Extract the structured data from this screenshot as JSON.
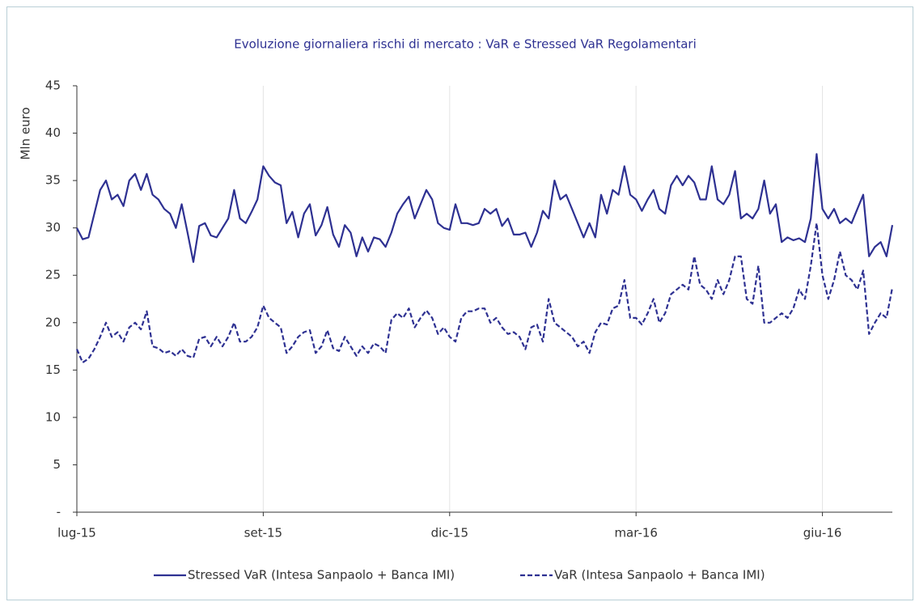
{
  "chart_data": {
    "type": "line",
    "title": "Evoluzione giornaliera rischi di mercato : VaR e Stressed VaR Regolamentari",
    "y_label": "Mln euro",
    "categories": [
      "lug-15",
      null,
      null,
      null,
      null,
      null,
      null,
      null,
      null,
      null,
      null,
      null,
      null,
      null,
      null,
      null,
      null,
      null,
      null,
      null,
      null,
      null,
      null,
      null,
      null,
      null,
      null,
      null,
      null,
      null,
      null,
      null,
      "set-15",
      null,
      null,
      null,
      null,
      null,
      null,
      null,
      null,
      null,
      null,
      null,
      null,
      null,
      null,
      null,
      null,
      null,
      null,
      null,
      null,
      null,
      null,
      null,
      null,
      null,
      null,
      null,
      null,
      null,
      null,
      null,
      "dic-15",
      null,
      null,
      null,
      null,
      null,
      null,
      null,
      null,
      null,
      null,
      null,
      null,
      null,
      null,
      null,
      null,
      null,
      null,
      null,
      null,
      null,
      null,
      null,
      null,
      null,
      null,
      null,
      null,
      null,
      null,
      null,
      "mar-16",
      null,
      null,
      null,
      null,
      null,
      null,
      null,
      null,
      null,
      null,
      null,
      null,
      null,
      null,
      null,
      null,
      null,
      null,
      null,
      null,
      null,
      null,
      null,
      null,
      null,
      null,
      null,
      null,
      null,
      null,
      null,
      "giu-16",
      null,
      null,
      null,
      null,
      null,
      null,
      null,
      null,
      null,
      null,
      null,
      null
    ],
    "series": [
      {
        "name": "Stressed VaR (Intesa Sanpaolo + Banca IMI)",
        "color": "#2e3192",
        "line_style": "solid",
        "values": [
          30,
          28.8,
          29,
          31.5,
          34,
          35,
          33,
          33.5,
          32.3,
          35,
          35.7,
          34,
          35.7,
          33.5,
          33,
          32,
          31.5,
          30,
          32.5,
          29.5,
          26.4,
          30.2,
          30.5,
          29.2,
          29,
          30,
          31,
          34,
          31,
          30.5,
          31.7,
          33,
          36.5,
          35.5,
          34.8,
          34.5,
          30.5,
          31.7,
          29,
          31.5,
          32.5,
          29.2,
          30.3,
          32.2,
          29.3,
          28,
          30.3,
          29.5,
          27,
          29,
          27.5,
          29,
          28.8,
          28,
          29.5,
          31.5,
          32.5,
          33.3,
          31,
          32.5,
          34,
          33,
          30.5,
          30,
          29.8,
          32.5,
          30.5,
          30.5,
          30.3,
          30.5,
          32,
          31.5,
          32,
          30.2,
          31,
          29.3,
          29.3,
          29.5,
          28,
          29.5,
          31.8,
          31,
          35,
          33,
          33.5,
          32,
          30.5,
          29,
          30.5,
          29,
          33.5,
          31.5,
          34,
          33.5,
          36.5,
          33.5,
          33,
          31.8,
          33,
          34,
          32,
          31.5,
          34.5,
          35.5,
          34.5,
          35.5,
          34.8,
          33,
          33,
          36.5,
          33,
          32.5,
          33.5,
          36,
          31,
          31.5,
          31,
          32,
          35,
          31.5,
          32.5,
          28.5,
          29,
          28.7,
          28.9,
          28.5,
          31,
          37.8,
          32,
          31,
          32,
          30.5,
          31,
          30.5,
          32,
          33.5,
          27,
          28,
          28.5,
          27,
          30.3
        ]
      },
      {
        "name": "VaR (Intesa Sanpaolo + Banca IMI)",
        "color": "#2e3192",
        "line_style": "dashed",
        "values": [
          17.2,
          15.8,
          16.2,
          17.2,
          18.5,
          20,
          18.5,
          19,
          18,
          19.5,
          20,
          19.3,
          21.2,
          17.5,
          17.3,
          16.8,
          17,
          16.5,
          17.2,
          16.5,
          16.3,
          18.3,
          18.5,
          17.5,
          18.5,
          17.5,
          18.5,
          20,
          18,
          18,
          18.5,
          19.5,
          21.8,
          20.5,
          20,
          19.5,
          16.8,
          17.5,
          18.5,
          19,
          19.2,
          16.8,
          17.5,
          19.2,
          17.3,
          17,
          18.5,
          17.5,
          16.5,
          17.5,
          16.8,
          17.8,
          17.5,
          16.8,
          20.3,
          21,
          20.5,
          21.5,
          19.5,
          20.5,
          21.3,
          20.5,
          18.8,
          19.5,
          18.5,
          18,
          20.5,
          21.2,
          21.2,
          21.5,
          21.5,
          20,
          20.5,
          19.5,
          18.8,
          19,
          18.5,
          17.2,
          19.5,
          19.8,
          18,
          22.5,
          20,
          19.5,
          19,
          18.5,
          17.5,
          18,
          16.8,
          19,
          20,
          19.8,
          21.5,
          21.8,
          24.5,
          20.5,
          20.5,
          19.8,
          21,
          22.5,
          20,
          21,
          23,
          23.5,
          24,
          23.5,
          27,
          24,
          23.5,
          22.5,
          24.5,
          23,
          24.5,
          27,
          27,
          22.5,
          22,
          26,
          20,
          20,
          20.5,
          21,
          20.5,
          21.5,
          23.5,
          22.5,
          26,
          30.5,
          25,
          22.5,
          24.5,
          27.5,
          25,
          24.5,
          23.5,
          25.5,
          18.8,
          20,
          21,
          20.5,
          23.7
        ]
      }
    ],
    "ylim": [
      0,
      45
    ],
    "yticks": [
      {
        "value": 0,
        "label": "-"
      },
      5,
      10,
      15,
      20,
      25,
      30,
      35,
      40,
      45
    ],
    "grid": true
  }
}
